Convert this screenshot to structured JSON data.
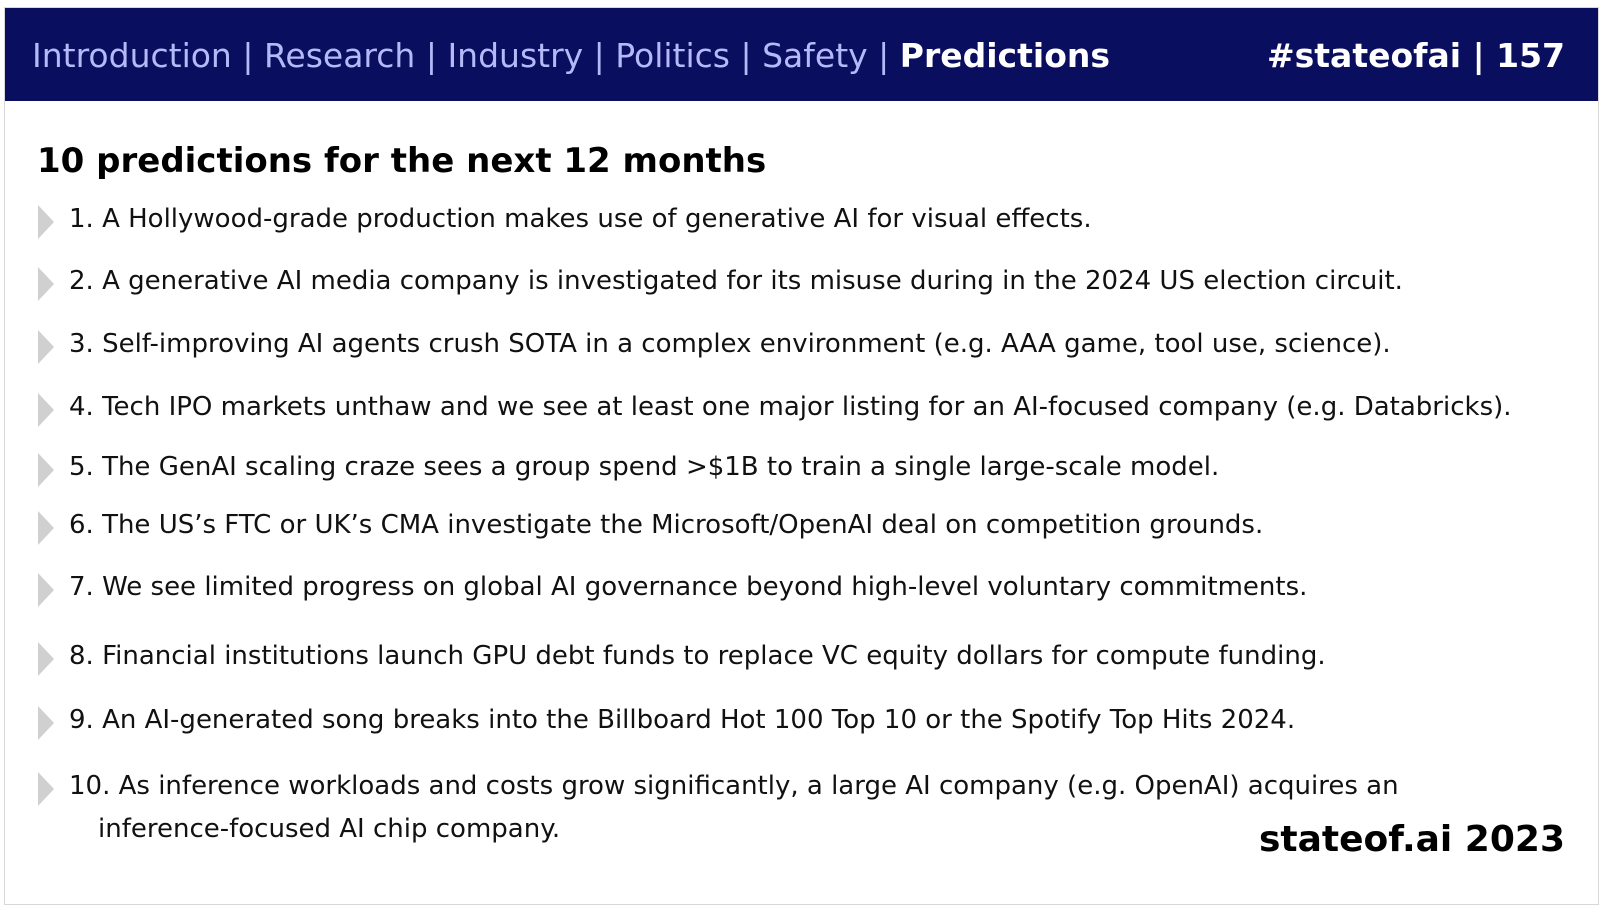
{
  "header": {
    "nav": [
      {
        "label": "Introduction",
        "active": false
      },
      {
        "label": "Research",
        "active": false
      },
      {
        "label": "Industry",
        "active": false
      },
      {
        "label": "Politics",
        "active": false
      },
      {
        "label": "Safety",
        "active": false
      },
      {
        "label": "Predictions",
        "active": true
      }
    ],
    "separator": " | ",
    "tag": "#stateofai | 157",
    "background_color": "#0a0e5f"
  },
  "main": {
    "title": "10 predictions for the next 12 months",
    "items": [
      {
        "text": "1. A Hollywood-grade production makes use of generative AI for visual effects."
      },
      {
        "text": "2. A generative AI media company is investigated for its misuse during in the 2024 US election circuit."
      },
      {
        "text": "3. Self-improving AI agents crush SOTA in a complex environment (e.g. AAA game, tool use, science)."
      },
      {
        "text": "4. Tech IPO markets unthaw and we see at least one major listing for an AI-focused company (e.g. Databricks)."
      },
      {
        "text": "5. The GenAI scaling craze sees a group spend >$1B to train a single large-scale model."
      },
      {
        "text": "6. The US’s FTC or UK’s CMA investigate the Microsoft/OpenAI deal on competition grounds."
      },
      {
        "text": "7. We see limited progress on global AI governance beyond high-level voluntary commitments."
      },
      {
        "text": "8. Financial institutions launch GPU debt funds to replace VC equity dollars for compute funding."
      },
      {
        "text": "9. An AI-generated song breaks into the Billboard Hot 100 Top 10 or the Spotify Top Hits 2024."
      },
      {
        "text": "10. As inference workloads and costs grow significantly, a large AI company (e.g. OpenAI) acquires an inference-focused AI chip company."
      }
    ],
    "bullet_icon": "triangle-right-icon"
  },
  "footer": {
    "brand": "stateof.ai 2023"
  }
}
